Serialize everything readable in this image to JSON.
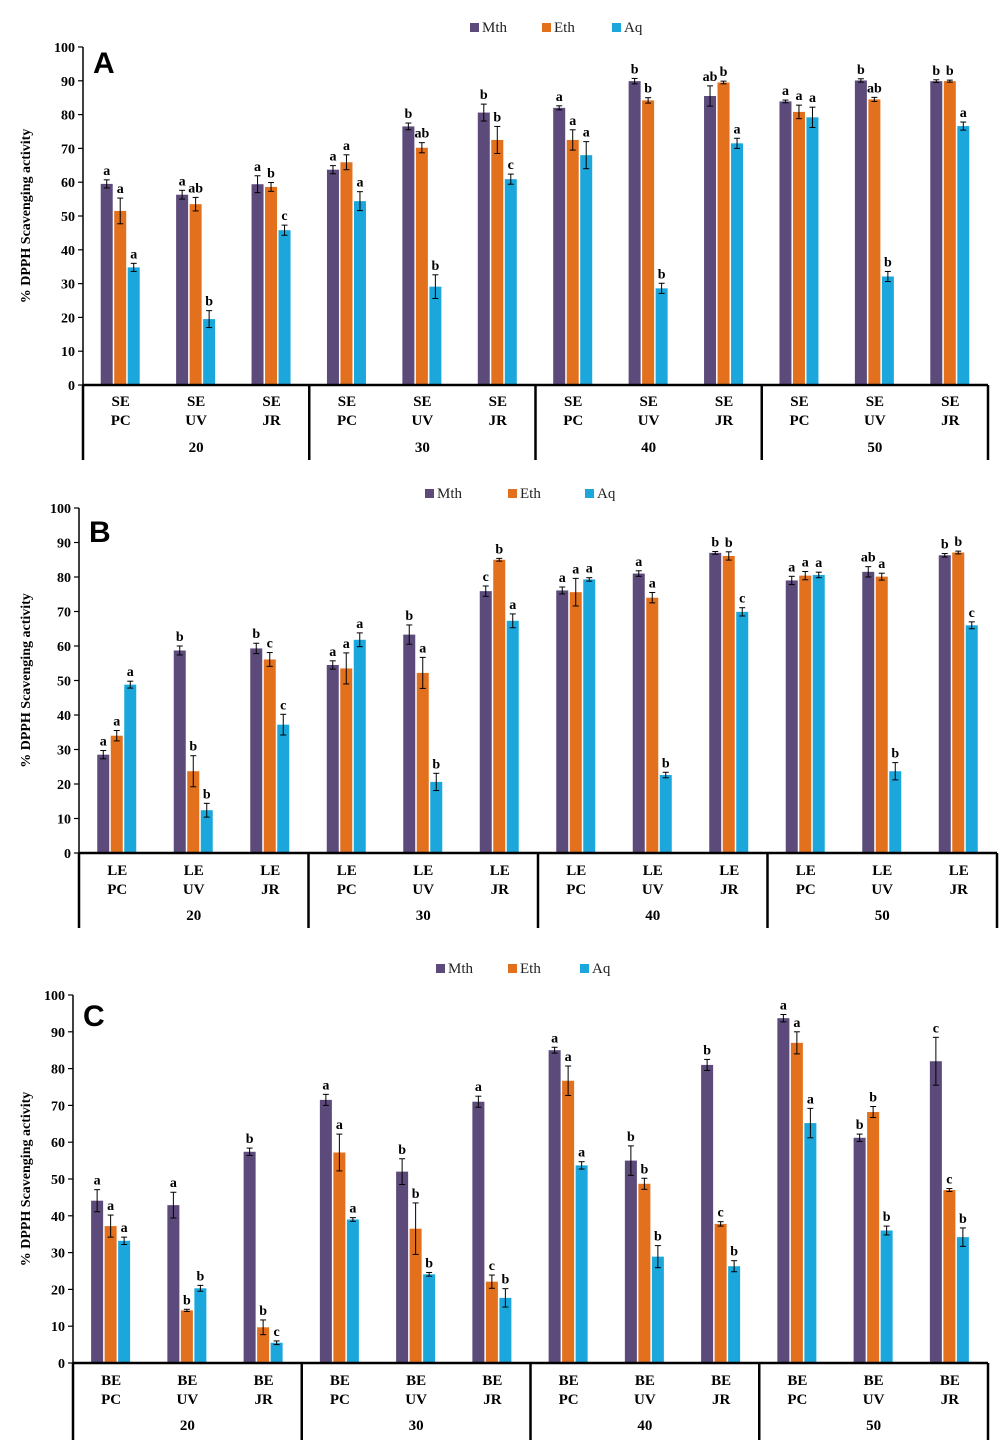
{
  "colors": {
    "mth": "#5b4a7a",
    "eth": "#e2701c",
    "aq": "#1ca7dc",
    "axis": "#000000"
  },
  "chart_data": [
    {
      "type": "bar",
      "panel": "A",
      "ylabel": "% DPPH Scavenging activity",
      "ylim": [
        0,
        100
      ],
      "yticks": [
        "0",
        "10",
        "20",
        "30",
        "40",
        "50",
        "60",
        "70",
        "80",
        "90",
        "100"
      ],
      "legend": [
        "Mth",
        "Eth",
        "Aq"
      ],
      "groups": [
        "20",
        "30",
        "40",
        "50"
      ],
      "categories": [
        [
          "SE",
          "PC"
        ],
        [
          "SE",
          "UV"
        ],
        [
          "SE",
          "JR"
        ],
        [
          "SE",
          "PC"
        ],
        [
          "SE",
          "UV"
        ],
        [
          "SE",
          "JR"
        ],
        [
          "SE",
          "PC"
        ],
        [
          "SE",
          "UV"
        ],
        [
          "SE",
          "JR"
        ],
        [
          "SE",
          "PC"
        ],
        [
          "SE",
          "UV"
        ],
        [
          "SE",
          "JR"
        ]
      ],
      "series": [
        {
          "name": "Mth",
          "values": [
            59.5,
            56.3,
            59.4,
            63.7,
            76.5,
            80.6,
            82.0,
            89.9,
            85.5,
            83.9,
            90.1,
            89.9
          ],
          "errors": [
            1.2,
            1.3,
            2.5,
            1.2,
            1.0,
            2.5,
            0.6,
            0.8,
            3.0,
            0.4,
            0.5,
            0.4
          ],
          "labels": [
            "a",
            "a",
            "a",
            "a",
            "b",
            "b",
            "a",
            "b",
            "ab",
            "a",
            "b",
            "b"
          ]
        },
        {
          "name": "Eth",
          "values": [
            51.5,
            53.5,
            58.6,
            65.9,
            70.2,
            72.5,
            72.5,
            84.2,
            89.5,
            80.8,
            84.5,
            89.9
          ],
          "errors": [
            3.8,
            2.0,
            1.3,
            2.2,
            1.5,
            4.0,
            3.0,
            0.8,
            0.4,
            2.0,
            0.6,
            0.3
          ],
          "labels": [
            "a",
            "ab",
            "b",
            "a",
            "ab",
            "b",
            "a",
            "b",
            "b",
            "a",
            "ab",
            "b"
          ]
        },
        {
          "name": "Aq",
          "values": [
            34.8,
            19.5,
            45.8,
            54.4,
            29.1,
            60.9,
            68.0,
            28.6,
            71.5,
            79.2,
            32.1,
            76.6
          ],
          "errors": [
            1.2,
            2.5,
            1.5,
            2.8,
            3.5,
            1.5,
            4.0,
            1.5,
            1.5,
            3.0,
            1.5,
            1.2
          ],
          "labels": [
            "a",
            "b",
            "c",
            "a",
            "b",
            "c",
            "a",
            "b",
            "a",
            "a",
            "b",
            "a"
          ]
        }
      ]
    },
    {
      "type": "bar",
      "panel": "B",
      "ylabel": "% DPPH Scavenging activity",
      "ylim": [
        0,
        100
      ],
      "yticks": [
        "0",
        "10",
        "20",
        "30",
        "40",
        "50",
        "60",
        "70",
        "80",
        "90",
        "100"
      ],
      "legend": [
        "Mth",
        "Eth",
        "Aq"
      ],
      "groups": [
        "20",
        "30",
        "40",
        "50"
      ],
      "categories": [
        [
          "LE",
          "PC"
        ],
        [
          "LE",
          "UV"
        ],
        [
          "LE",
          "JR"
        ],
        [
          "LE",
          "PC"
        ],
        [
          "LE",
          "UV"
        ],
        [
          "LE",
          "JR"
        ],
        [
          "LE",
          "PC"
        ],
        [
          "LE",
          "UV"
        ],
        [
          "LE",
          "JR"
        ],
        [
          "LE",
          "PC"
        ],
        [
          "LE",
          "UV"
        ],
        [
          "LE",
          "JR"
        ]
      ],
      "series": [
        {
          "name": "Mth",
          "values": [
            28.5,
            58.7,
            59.3,
            54.5,
            63.3,
            75.9,
            76.1,
            81.0,
            87.0,
            79.0,
            81.5,
            86.3
          ],
          "errors": [
            1.2,
            1.3,
            1.5,
            1.2,
            2.8,
            1.5,
            1.0,
            0.8,
            0.4,
            1.2,
            1.5,
            0.5
          ],
          "labels": [
            "a",
            "b",
            "b",
            "a",
            "b",
            "c",
            "a",
            "a",
            "b",
            "a",
            "ab",
            "b"
          ]
        },
        {
          "name": "Eth",
          "values": [
            34.0,
            23.7,
            56.1,
            53.5,
            52.2,
            85.0,
            75.6,
            74.0,
            86.1,
            80.4,
            80.1,
            87.1
          ],
          "errors": [
            1.5,
            4.5,
            2.0,
            4.5,
            4.5,
            0.4,
            4.0,
            1.5,
            1.2,
            1.2,
            1.0,
            0.4
          ],
          "labels": [
            "a",
            "b",
            "c",
            "a",
            "a",
            "b",
            "a",
            "a",
            "b",
            "a",
            "a",
            "b"
          ]
        },
        {
          "name": "Aq",
          "values": [
            48.8,
            12.4,
            37.2,
            61.8,
            20.6,
            67.3,
            79.3,
            22.6,
            69.9,
            80.6,
            23.7,
            66.0
          ],
          "errors": [
            1.0,
            2.0,
            3.0,
            2.0,
            2.5,
            2.0,
            0.5,
            0.8,
            1.2,
            0.8,
            2.5,
            1.0
          ],
          "labels": [
            "a",
            "b",
            "c",
            "a",
            "b",
            "a",
            "a",
            "b",
            "c",
            "a",
            "b",
            "c"
          ]
        }
      ]
    },
    {
      "type": "bar",
      "panel": "C",
      "ylabel": "% DPPH Scavenging activity",
      "ylim": [
        0,
        100
      ],
      "yticks": [
        "0",
        "10",
        "20",
        "30",
        "40",
        "50",
        "60",
        "70",
        "80",
        "90",
        "100"
      ],
      "legend": [
        "Mth",
        "Eth",
        "Aq"
      ],
      "groups": [
        "20",
        "30",
        "40",
        "50"
      ],
      "categories": [
        [
          "BE",
          "PC"
        ],
        [
          "BE",
          "UV"
        ],
        [
          "BE",
          "JR"
        ],
        [
          "BE",
          "PC"
        ],
        [
          "BE",
          "UV"
        ],
        [
          "BE",
          "JR"
        ],
        [
          "BE",
          "PC"
        ],
        [
          "BE",
          "UV"
        ],
        [
          "BE",
          "JR"
        ],
        [
          "BE",
          "PC"
        ],
        [
          "BE",
          "UV"
        ],
        [
          "BE",
          "JR"
        ]
      ],
      "series": [
        {
          "name": "Mth",
          "values": [
            44.1,
            42.9,
            57.4,
            71.5,
            52.0,
            71.0,
            85.0,
            55.0,
            81.0,
            93.7,
            61.2,
            82.0
          ],
          "errors": [
            3.0,
            3.5,
            1.0,
            1.5,
            3.5,
            1.5,
            0.8,
            4.0,
            1.5,
            1.0,
            1.0,
            6.5
          ],
          "labels": [
            "a",
            "a",
            "b",
            "a",
            "b",
            "a",
            "a",
            "b",
            "b",
            "a",
            "b",
            "c"
          ]
        },
        {
          "name": "Eth",
          "values": [
            37.2,
            14.3,
            9.7,
            57.2,
            36.5,
            22.1,
            76.7,
            48.7,
            37.8,
            87.0,
            68.2,
            47.0
          ],
          "errors": [
            3.0,
            0.3,
            2.0,
            5.0,
            7.0,
            1.8,
            4.0,
            1.5,
            0.6,
            3.0,
            1.5,
            0.4
          ],
          "labels": [
            "a",
            "b",
            "b",
            "a",
            "b",
            "c",
            "a",
            "b",
            "c",
            "a",
            "b",
            "c"
          ]
        },
        {
          "name": "Aq",
          "values": [
            33.2,
            20.3,
            5.5,
            39.0,
            24.1,
            17.7,
            53.7,
            28.9,
            26.3,
            65.2,
            36.0,
            34.2
          ],
          "errors": [
            1.0,
            0.8,
            0.5,
            0.5,
            0.5,
            2.5,
            1.0,
            3.0,
            1.5,
            4.0,
            1.2,
            2.5
          ],
          "labels": [
            "a",
            "b",
            "c",
            "a",
            "b",
            "b",
            "a",
            "b",
            "b",
            "a",
            "b",
            "b"
          ]
        }
      ]
    }
  ]
}
